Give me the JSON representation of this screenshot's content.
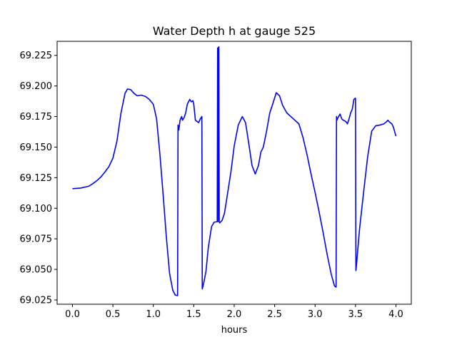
{
  "chart_data": {
    "type": "line",
    "title": "Water Depth h at gauge 525",
    "xlabel": "hours",
    "ylabel": "",
    "xlim": [
      -0.19,
      4.19
    ],
    "ylim": [
      69.0215,
      69.2365
    ],
    "xticks": [
      0.0,
      0.5,
      1.0,
      1.5,
      2.0,
      2.5,
      3.0,
      3.5,
      4.0
    ],
    "xtick_labels": [
      "0.0",
      "0.5",
      "1.0",
      "1.5",
      "2.0",
      "2.5",
      "3.0",
      "3.5",
      "4.0"
    ],
    "yticks": [
      69.025,
      69.05,
      69.075,
      69.1,
      69.125,
      69.15,
      69.175,
      69.2,
      69.225
    ],
    "ytick_labels": [
      "69.025",
      "69.050",
      "69.075",
      "69.100",
      "69.125",
      "69.150",
      "69.175",
      "69.200",
      "69.225"
    ],
    "grid": false,
    "series": [
      {
        "color": "#0000ff",
        "x": [
          0.0,
          0.1,
          0.2,
          0.25,
          0.3,
          0.35,
          0.4,
          0.45,
          0.5,
          0.55,
          0.6,
          0.65,
          0.68,
          0.72,
          0.76,
          0.8,
          0.85,
          0.9,
          0.95,
          1.0,
          1.04,
          1.08,
          1.12,
          1.16,
          1.2,
          1.24,
          1.27,
          1.3,
          1.305,
          1.315,
          1.33,
          1.35,
          1.36,
          1.38,
          1.4,
          1.42,
          1.45,
          1.47,
          1.49,
          1.5,
          1.52,
          1.54,
          1.56,
          1.58,
          1.6,
          1.605,
          1.62,
          1.65,
          1.68,
          1.72,
          1.75,
          1.79,
          1.795,
          1.8,
          1.805,
          1.81,
          1.815,
          1.82,
          1.85,
          1.88,
          1.92,
          1.96,
          2.0,
          2.05,
          2.1,
          2.14,
          2.18,
          2.22,
          2.26,
          2.3,
          2.33,
          2.36,
          2.4,
          2.44,
          2.48,
          2.52,
          2.56,
          2.6,
          2.65,
          2.7,
          2.75,
          2.8,
          2.85,
          2.9,
          2.95,
          3.0,
          3.05,
          3.1,
          3.15,
          3.2,
          3.24,
          3.26,
          3.265,
          3.27,
          3.29,
          3.3,
          3.31,
          3.33,
          3.35,
          3.38,
          3.4,
          3.42,
          3.44,
          3.46,
          3.48,
          3.5,
          3.505,
          3.51,
          3.52,
          3.55,
          3.6,
          3.65,
          3.7,
          3.75,
          3.8,
          3.85,
          3.88,
          3.9,
          3.92,
          3.95,
          3.97,
          4.0
        ],
        "y": [
          69.116,
          69.1165,
          69.118,
          69.12,
          69.1225,
          69.1255,
          69.1295,
          69.134,
          69.141,
          69.155,
          69.178,
          69.194,
          69.1975,
          69.197,
          69.194,
          69.192,
          69.1925,
          69.1915,
          69.189,
          69.185,
          69.173,
          69.145,
          69.112,
          69.077,
          69.047,
          69.033,
          69.029,
          69.0285,
          69.168,
          69.164,
          69.172,
          69.175,
          69.172,
          69.174,
          69.178,
          69.185,
          69.189,
          69.187,
          69.188,
          69.185,
          69.172,
          69.171,
          69.17,
          69.173,
          69.175,
          69.034,
          69.038,
          69.048,
          69.068,
          69.085,
          69.0885,
          69.089,
          69.231,
          69.089,
          69.2315,
          69.232,
          69.089,
          69.088,
          69.09,
          69.096,
          69.113,
          69.13,
          69.151,
          69.168,
          69.175,
          69.17,
          69.153,
          69.135,
          69.128,
          69.135,
          69.146,
          69.15,
          69.163,
          69.178,
          69.186,
          69.1945,
          69.192,
          69.184,
          69.178,
          69.175,
          69.172,
          69.169,
          69.158,
          69.144,
          69.128,
          69.113,
          69.097,
          69.08,
          69.062,
          69.046,
          69.0365,
          69.0355,
          69.175,
          69.172,
          69.175,
          69.176,
          69.177,
          69.173,
          69.172,
          69.171,
          69.169,
          69.173,
          69.178,
          69.181,
          69.189,
          69.19,
          69.049,
          69.052,
          69.06,
          69.083,
          69.113,
          69.142,
          69.163,
          69.1675,
          69.168,
          69.169,
          69.1705,
          69.172,
          69.1705,
          69.169,
          69.166,
          69.159
        ]
      }
    ]
  }
}
